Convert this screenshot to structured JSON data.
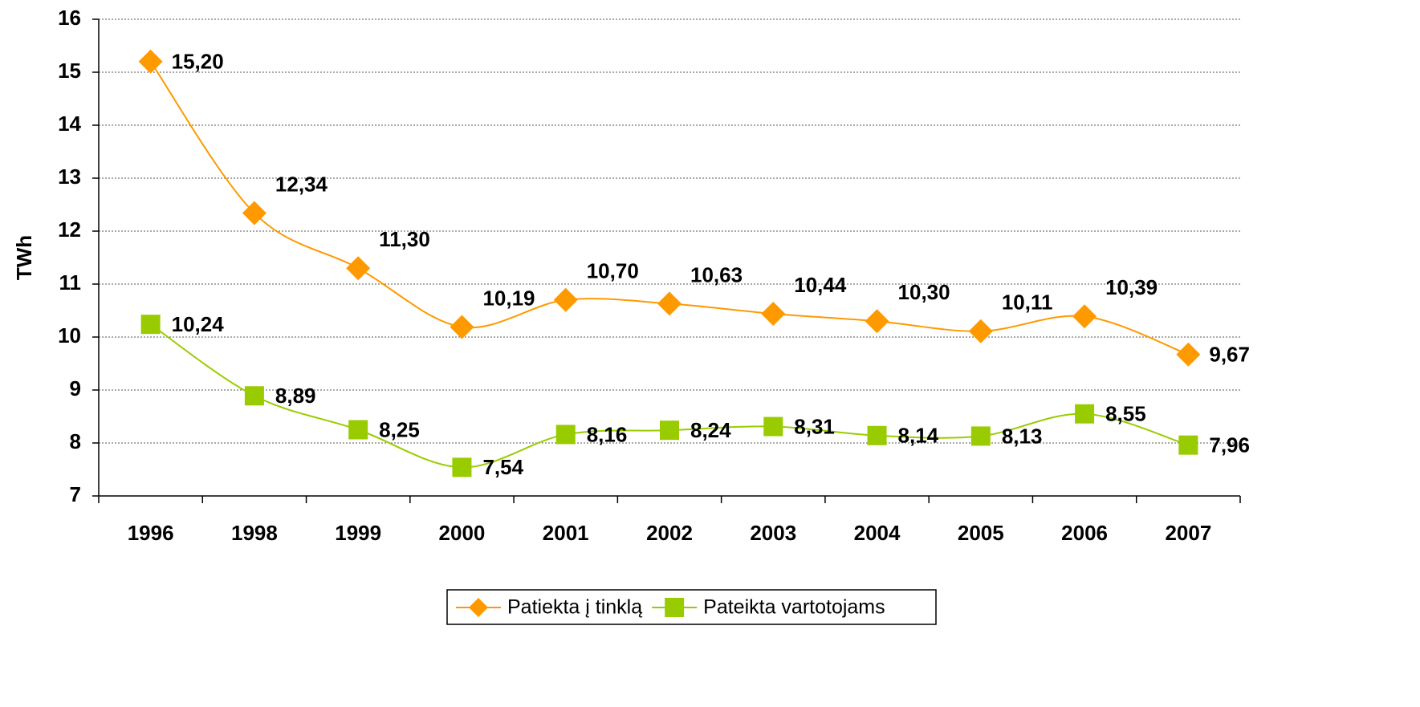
{
  "chart_data": {
    "type": "line",
    "y_label": "TWh",
    "categories": [
      "1996",
      "1998",
      "1999",
      "2000",
      "2001",
      "2002",
      "2003",
      "2004",
      "2005",
      "2006",
      "2007"
    ],
    "series": [
      {
        "name": "Patiekta į tinklą",
        "color": "#ff9900",
        "marker": "diamond",
        "values": [
          15.2,
          12.34,
          11.3,
          10.19,
          10.7,
          10.63,
          10.44,
          10.3,
          10.11,
          10.39,
          9.67
        ],
        "value_labels": [
          "15,20",
          "12,34",
          "11,30",
          "10,19",
          "10,70",
          "10,63",
          "10,44",
          "10,30",
          "10,11",
          "10,39",
          "9,67"
        ]
      },
      {
        "name": "Pateikta vartotojams",
        "color": "#99cc00",
        "marker": "square",
        "values": [
          10.24,
          8.89,
          8.25,
          7.54,
          8.16,
          8.24,
          8.31,
          8.14,
          8.13,
          8.55,
          7.96
        ],
        "value_labels": [
          "10,24",
          "8,89",
          "8,25",
          "7,54",
          "8,16",
          "8,24",
          "8,31",
          "8,14",
          "8,13",
          "8,55",
          "7,96"
        ]
      }
    ],
    "ylim": [
      7,
      16
    ],
    "yticks": [
      7,
      8,
      9,
      10,
      11,
      12,
      13,
      14,
      15,
      16
    ],
    "grid": true,
    "legend": "bottom"
  }
}
